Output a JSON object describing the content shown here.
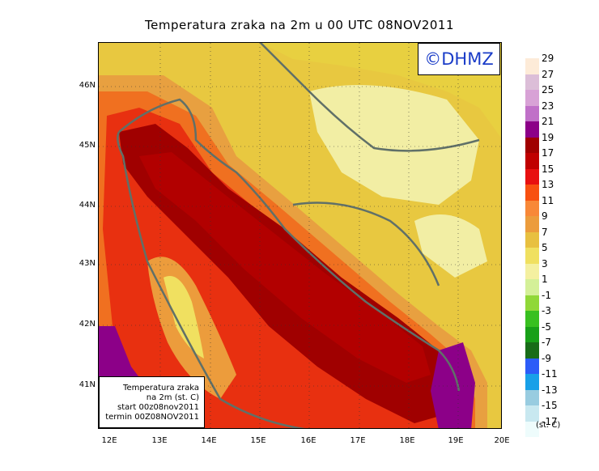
{
  "title": "Temperatura zraka na 2m u 00 UTC 08NOV2011",
  "brand": "©DHMZ",
  "info": {
    "line1": "Temperatura zraka",
    "line2": "na 2m (st. C)",
    "line3": "start 00z08nov2011",
    "line4": "termin 00Z08NOV2011"
  },
  "lat_ticks": [
    "46N",
    "45N",
    "44N",
    "43N",
    "42N",
    "41N"
  ],
  "lon_ticks": [
    "12E",
    "13E",
    "14E",
    "15E",
    "16E",
    "17E",
    "18E",
    "19E",
    "20E"
  ],
  "legend": {
    "unit": "(st. C)",
    "labels": [
      "29",
      "27",
      "25",
      "23",
      "21",
      "19",
      "17",
      "15",
      "13",
      "11",
      "9",
      "7",
      "5",
      "3",
      "1",
      "-1",
      "-3",
      "-5",
      "-7",
      "-9",
      "-11",
      "-13",
      "-15",
      "-17"
    ],
    "colors": [
      "#fdebd8",
      "#dcbed8",
      "#d8a2d6",
      "#c070c8",
      "#8c0088",
      "#a00000",
      "#c00000",
      "#e81010",
      "#f85010",
      "#f88838",
      "#ec9c3c",
      "#e8c040",
      "#f0e060",
      "#f4f0a0",
      "#d4f098",
      "#90d838",
      "#38c020",
      "#18a018",
      "#186c18",
      "#2c5cf8",
      "#18a0e8",
      "#98cce0",
      "#c8e8f0",
      "#eefcfc"
    ]
  },
  "colors": {
    "land_cold": "#f0ec9c",
    "land_mid": "#e8d040",
    "coast_warm": "#f08828",
    "sea_warm": "#e84010",
    "sea_hot": "#a00000",
    "sea_core": "#b20000",
    "purple": "#8c0088",
    "coast_line": "#607068",
    "brand_text": "#1a3cc8"
  }
}
